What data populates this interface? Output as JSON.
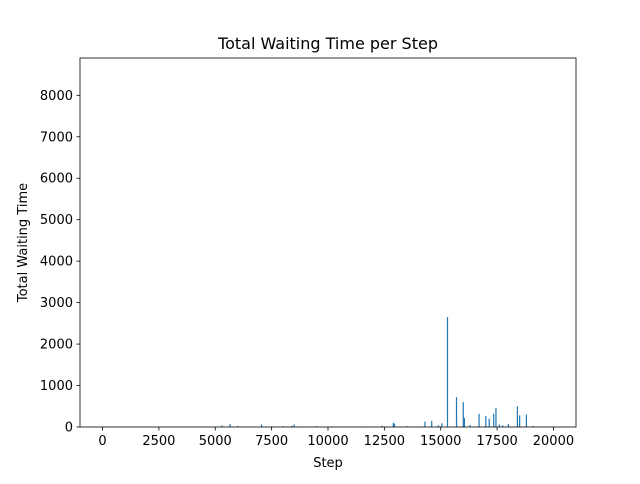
{
  "chart_data": {
    "type": "bar",
    "title": "Total Waiting Time per Step",
    "xlabel": "Step",
    "ylabel": "Total Waiting Time",
    "xlim": [
      -1000,
      21000
    ],
    "ylim": [
      0,
      8900
    ],
    "xticks": [
      0,
      2500,
      5000,
      7500,
      10000,
      12500,
      15000,
      17500,
      20000
    ],
    "yticks": [
      0,
      1000,
      2000,
      3000,
      4000,
      5000,
      6000,
      7000,
      8000
    ],
    "grid": false,
    "bar_color": "#1f77b4",
    "series": [
      {
        "x": [
          0,
          800,
          1500,
          2100,
          2600,
          5300,
          5650,
          6000,
          6500,
          7050,
          7500,
          8000,
          8400,
          8500,
          8800,
          9100,
          9500,
          10200,
          11300,
          11500,
          12000,
          12400,
          12900,
          12950,
          13500,
          14000,
          14300,
          14600,
          14900,
          15050,
          15300,
          15700,
          16000,
          16050,
          16300,
          16700,
          17000,
          17150,
          17350,
          17450,
          17600,
          17750,
          18000,
          18400,
          18500,
          18800,
          19100,
          19500
        ],
        "values": [
          5,
          8,
          5,
          6,
          10,
          40,
          70,
          25,
          10,
          60,
          15,
          20,
          30,
          60,
          15,
          12,
          20,
          15,
          12,
          15,
          10,
          30,
          100,
          80,
          20,
          15,
          130,
          150,
          40,
          90,
          2650,
          720,
          600,
          220,
          50,
          320,
          270,
          200,
          320,
          460,
          60,
          40,
          70,
          500,
          280,
          300,
          25,
          10
        ]
      }
    ]
  }
}
